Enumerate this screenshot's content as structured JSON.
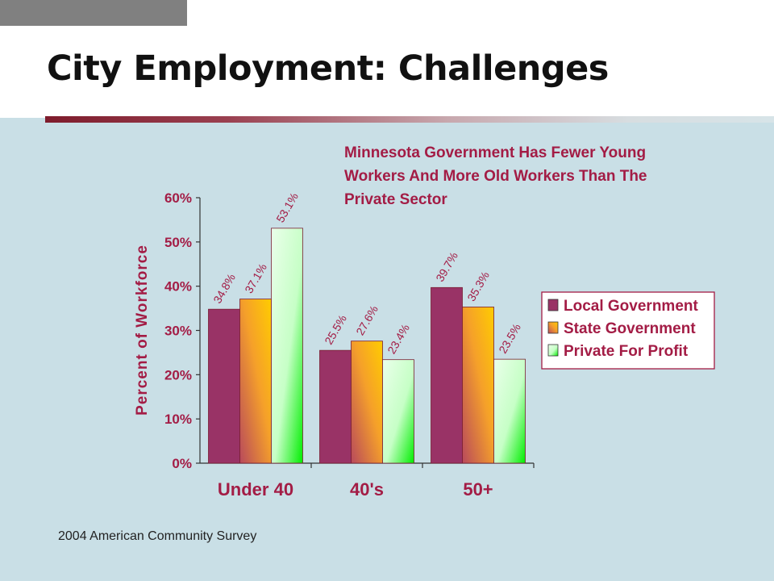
{
  "title": "City Employment: Challenges",
  "source": "2004 American Community Survey",
  "chart_data": {
    "type": "bar",
    "subtitle_lines": [
      "Minnesota Government Has Fewer Young",
      "Workers And More Old Workers Than The",
      "Private Sector"
    ],
    "ylabel": "Percent of Workforce",
    "xlabel": "",
    "categories": [
      "Under 40",
      "40's",
      "50+"
    ],
    "series": [
      {
        "name": "Local Government",
        "values": [
          34.8,
          25.5,
          39.7
        ],
        "labels": [
          "34.8%",
          "25.5%",
          "39.7%"
        ]
      },
      {
        "name": "State Government",
        "values": [
          37.1,
          27.6,
          35.3
        ],
        "labels": [
          "37.1%",
          "27.6%",
          "35.3%"
        ]
      },
      {
        "name": "Private For Profit",
        "values": [
          53.1,
          23.4,
          23.5
        ],
        "labels": [
          "53.1%",
          "23.4%",
          "23.5%"
        ]
      }
    ],
    "ylim": [
      0,
      60
    ],
    "yticks": [
      0,
      10,
      20,
      30,
      40,
      50,
      60
    ],
    "ytick_labels": [
      "0%",
      "10%",
      "20%",
      "30%",
      "40%",
      "50%",
      "60%"
    ],
    "grid": false,
    "legend_position": "right",
    "colors": {
      "local": "#993366",
      "state_dark": "#b8495c",
      "state_light": "#ffcc00",
      "private_light": "#ccffcc",
      "private_dark": "#00ee00",
      "bar_outline": "#7a1f33",
      "text": "#a31c45"
    }
  }
}
